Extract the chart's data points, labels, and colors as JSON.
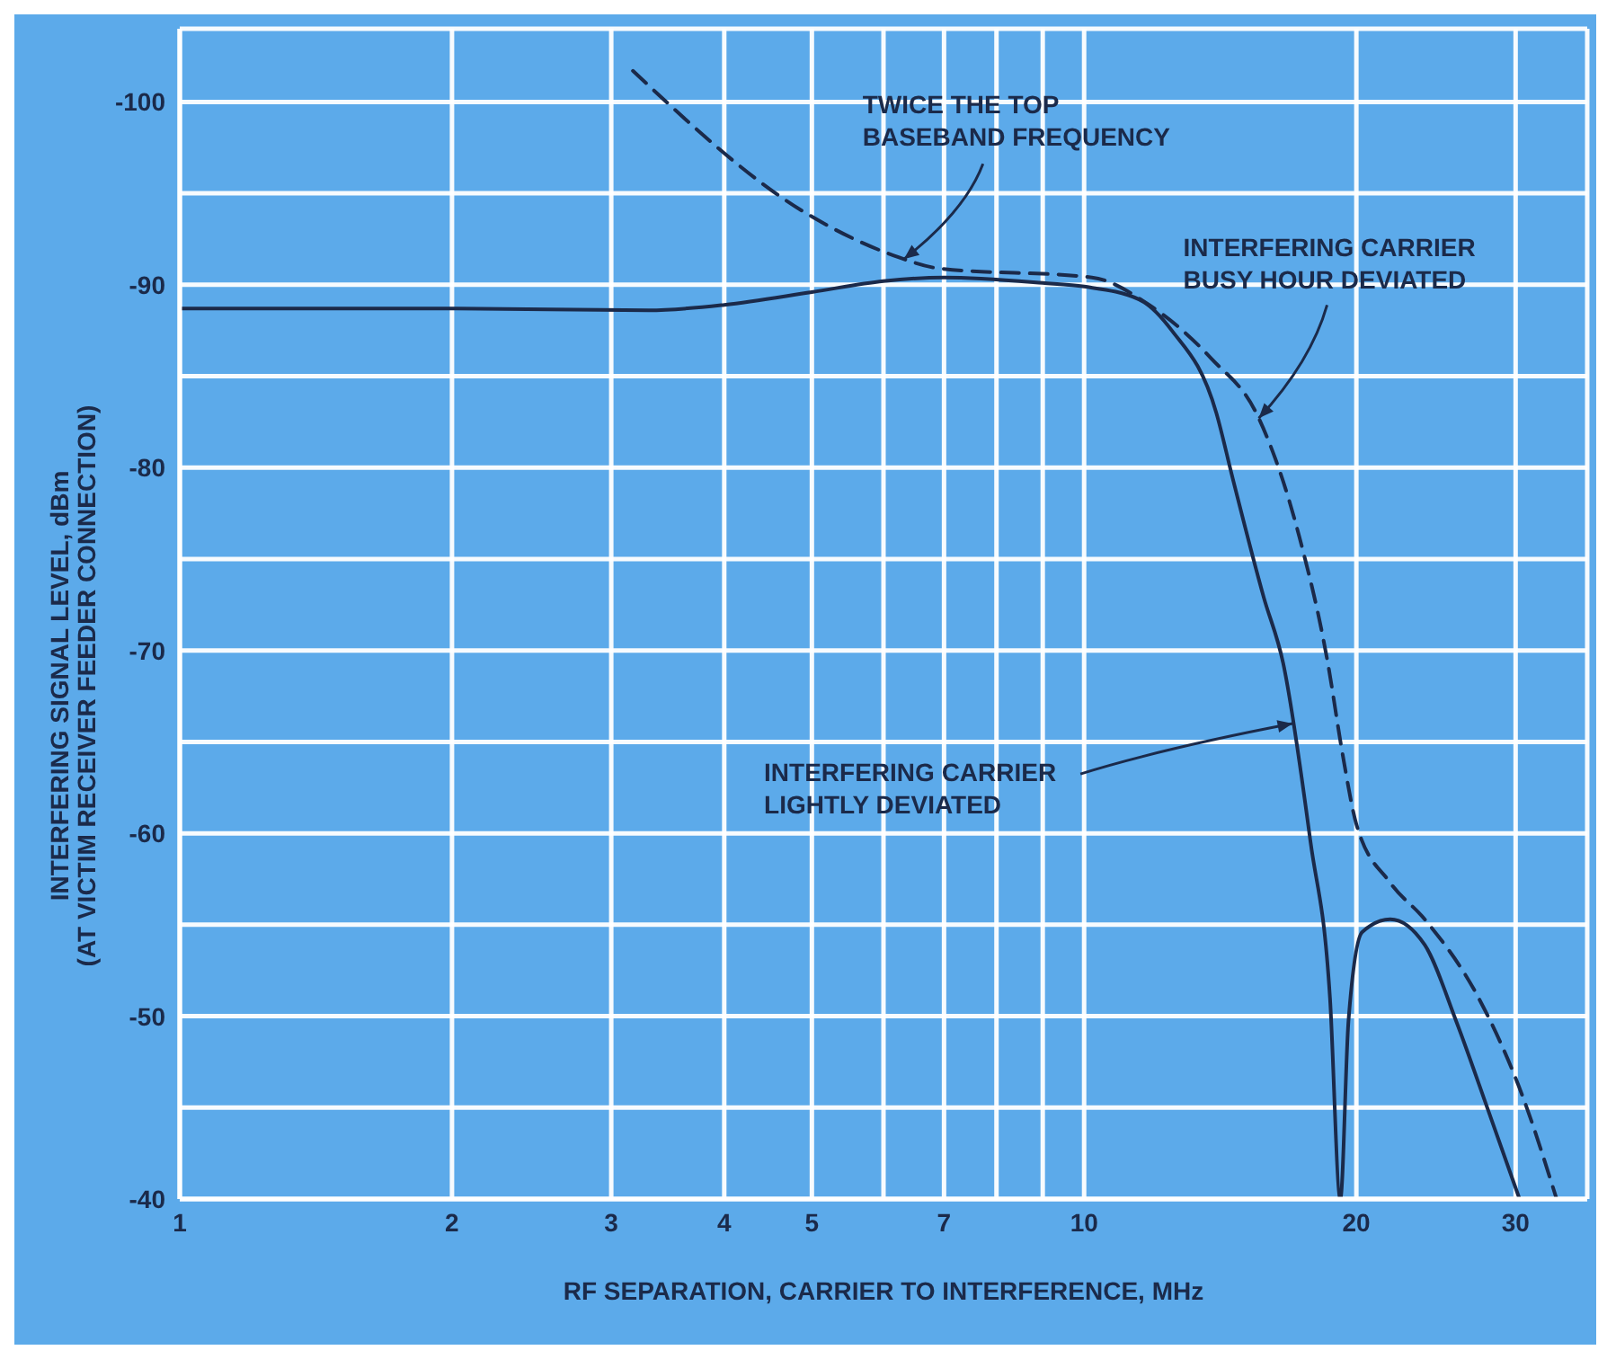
{
  "chart_data": {
    "type": "line",
    "xlabel": "RF SEPARATION, CARRIER TO INTERFERENCE, MHz",
    "ylabel": "INTERFERING SIGNAL LEVEL, dBm\n(AT VICTIM RECEIVER FEEDER CONNECTION)",
    "log": "x",
    "xlim": [
      1,
      36
    ],
    "xticks": [
      1,
      2,
      3,
      4,
      5,
      {
        "value": 6,
        "label": null
      },
      7,
      {
        "value": 8,
        "label": null
      },
      {
        "value": 9,
        "label": null
      },
      10,
      20,
      30
    ],
    "ylim": [
      -40,
      -104
    ],
    "yticks": [
      -100,
      {
        "value": -95,
        "label": null
      },
      -90,
      {
        "value": -85,
        "label": null
      },
      -80,
      {
        "value": -75,
        "label": null
      },
      -70,
      {
        "value": -65,
        "label": null
      },
      -60,
      {
        "value": -55,
        "label": null
      },
      -50,
      {
        "value": -45,
        "label": null
      },
      -40
    ],
    "grid": true,
    "series": [
      {
        "color": "#1b2a4a",
        "line_style": "solid",
        "x": [
          1,
          2,
          3.3,
          4,
          5,
          6,
          7,
          9,
          10,
          11.5,
          12.5,
          14,
          14.6,
          15.8,
          16.6,
          17.8,
          18.7,
          19.2,
          19.6,
          20.3,
          21.8,
          23.8,
          25.8,
          28,
          30.3
        ],
        "values": [
          -88.7,
          -88.7,
          -88.6,
          -88.9,
          -89.6,
          -90.2,
          -90.4,
          -90.1,
          -89.9,
          -89.2,
          -87.5,
          -83.0,
          -79.4,
          -72.9,
          -69.3,
          -59.5,
          -51.0,
          -40,
          -49.7,
          -54.6,
          -55.3,
          -53.9,
          -49.7,
          -44.8,
          -40
        ]
      },
      {
        "color": "#1b2a4a",
        "line_style": "dashed",
        "x": [
          3.17,
          4.97,
          6.16,
          6.9,
          10.2,
          11.8,
          13.8,
          15.6,
          17.3,
          18.6,
          19.3,
          20,
          21.8,
          23.8,
          27.3,
          30.6,
          33.3
        ],
        "values": [
          -101.7,
          -93.8,
          -91.6,
          -90.9,
          -90.4,
          -88.9,
          -86.0,
          -82.7,
          -76.2,
          -69.3,
          -64.4,
          -60.5,
          -57.3,
          -55.3,
          -51.0,
          -45.5,
          -40
        ]
      }
    ],
    "annotations": [
      {
        "text": "TWICE THE TOP\nBASEBAND FREQUENCY",
        "x": 6.32,
        "y": -91.4
      },
      {
        "text": "INTERFERING CARRIER\nBUSY HOUR DEVIATED",
        "x": 15.6,
        "y": -82.7
      },
      {
        "text": "INTERFERING CARRIER\nLIGHTLY DEVIATED",
        "x": 17.0,
        "y": -66.0
      }
    ]
  }
}
